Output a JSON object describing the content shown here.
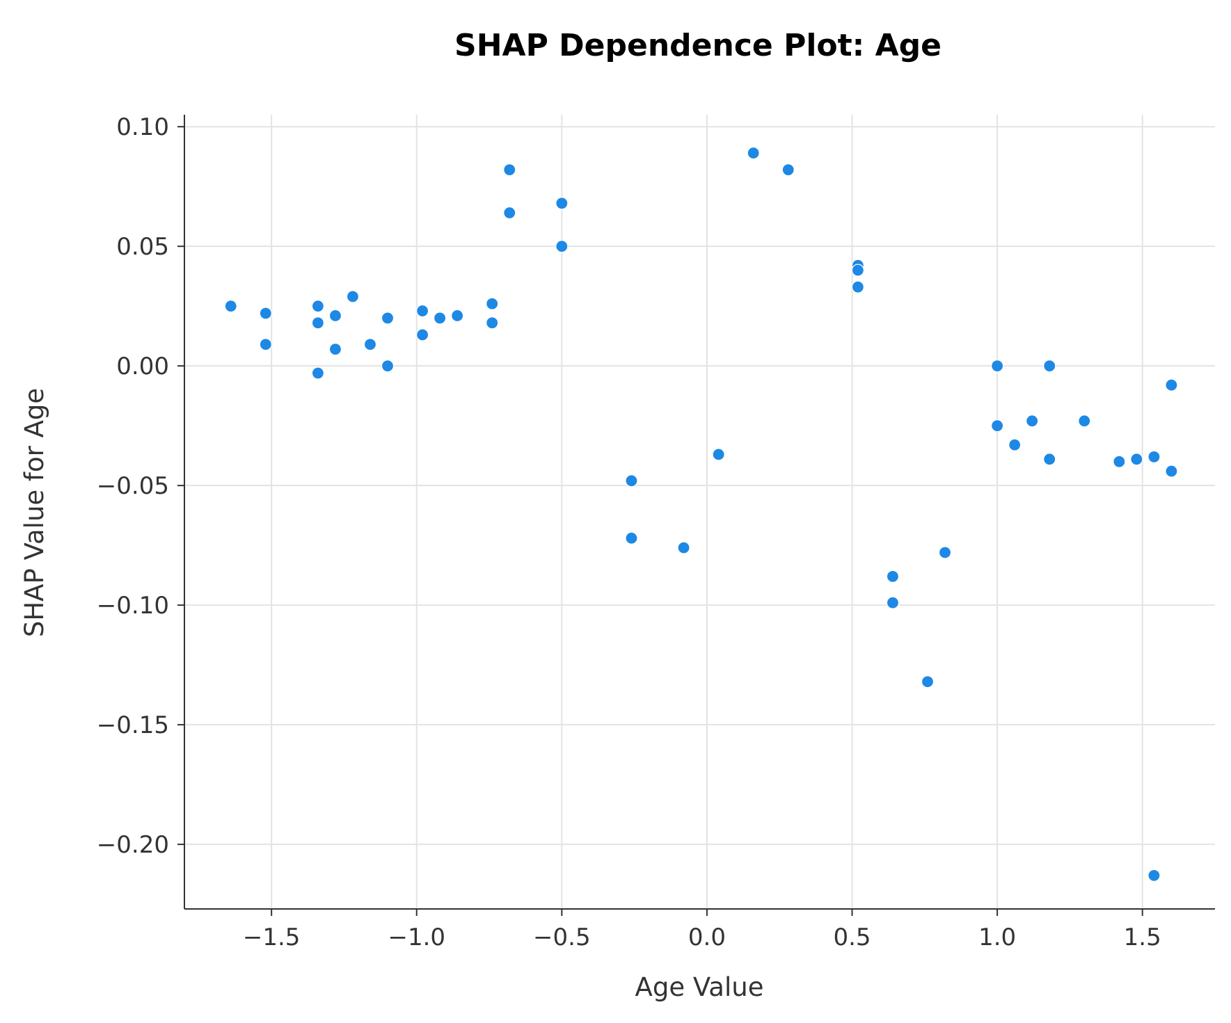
{
  "colors": {
    "point": "#1e88e5",
    "grid": "#e3e3e3",
    "axis": "#333333"
  },
  "chart_data": {
    "type": "scatter",
    "title": "SHAP Dependence Plot: Age",
    "xlabel": "Age Value",
    "ylabel": "SHAP Value for Age",
    "xlim": [
      -1.8,
      1.75
    ],
    "ylim": [
      -0.227,
      0.105
    ],
    "grid": true,
    "x_ticks": [
      -1.5,
      -1.0,
      -0.5,
      0.0,
      0.5,
      1.0,
      1.5
    ],
    "x_tick_labels": [
      "−1.5",
      "−1.0",
      "−0.5",
      "0.0",
      "0.5",
      "1.0",
      "1.5"
    ],
    "y_ticks": [
      0.1,
      0.05,
      0.0,
      -0.05,
      -0.1,
      -0.15,
      -0.2
    ],
    "y_tick_labels": [
      "0.10",
      "0.05",
      "0.00",
      "−0.05",
      "−0.10",
      "−0.15",
      "−0.20"
    ],
    "points": [
      {
        "x": -1.64,
        "y": 0.025
      },
      {
        "x": -1.52,
        "y": 0.022
      },
      {
        "x": -1.52,
        "y": 0.009
      },
      {
        "x": -1.34,
        "y": 0.025
      },
      {
        "x": -1.34,
        "y": 0.018
      },
      {
        "x": -1.34,
        "y": -0.003
      },
      {
        "x": -1.28,
        "y": 0.021
      },
      {
        "x": -1.28,
        "y": 0.007
      },
      {
        "x": -1.22,
        "y": 0.029
      },
      {
        "x": -1.16,
        "y": 0.009
      },
      {
        "x": -1.1,
        "y": 0.02
      },
      {
        "x": -1.1,
        "y": 0.0
      },
      {
        "x": -0.98,
        "y": 0.023
      },
      {
        "x": -0.98,
        "y": 0.013
      },
      {
        "x": -0.92,
        "y": 0.02
      },
      {
        "x": -0.86,
        "y": 0.021
      },
      {
        "x": -0.74,
        "y": 0.026
      },
      {
        "x": -0.74,
        "y": 0.018
      },
      {
        "x": -0.68,
        "y": 0.082
      },
      {
        "x": -0.68,
        "y": 0.064
      },
      {
        "x": -0.5,
        "y": 0.068
      },
      {
        "x": -0.5,
        "y": 0.05
      },
      {
        "x": -0.26,
        "y": -0.048
      },
      {
        "x": -0.26,
        "y": -0.072
      },
      {
        "x": -0.08,
        "y": -0.076
      },
      {
        "x": 0.04,
        "y": -0.037
      },
      {
        "x": 0.16,
        "y": 0.089
      },
      {
        "x": 0.28,
        "y": 0.082
      },
      {
        "x": 0.52,
        "y": 0.042
      },
      {
        "x": 0.52,
        "y": 0.04
      },
      {
        "x": 0.52,
        "y": 0.033
      },
      {
        "x": 0.64,
        "y": -0.088
      },
      {
        "x": 0.64,
        "y": -0.099
      },
      {
        "x": 0.76,
        "y": -0.132
      },
      {
        "x": 0.82,
        "y": -0.078
      },
      {
        "x": 1.0,
        "y": 0.0
      },
      {
        "x": 1.0,
        "y": -0.025
      },
      {
        "x": 1.06,
        "y": -0.033
      },
      {
        "x": 1.12,
        "y": -0.023
      },
      {
        "x": 1.18,
        "y": 0.0
      },
      {
        "x": 1.18,
        "y": -0.039
      },
      {
        "x": 1.3,
        "y": -0.023
      },
      {
        "x": 1.42,
        "y": -0.04
      },
      {
        "x": 1.48,
        "y": -0.039
      },
      {
        "x": 1.54,
        "y": -0.038
      },
      {
        "x": 1.54,
        "y": -0.213
      },
      {
        "x": 1.6,
        "y": -0.008
      },
      {
        "x": 1.6,
        "y": -0.044
      }
    ]
  }
}
